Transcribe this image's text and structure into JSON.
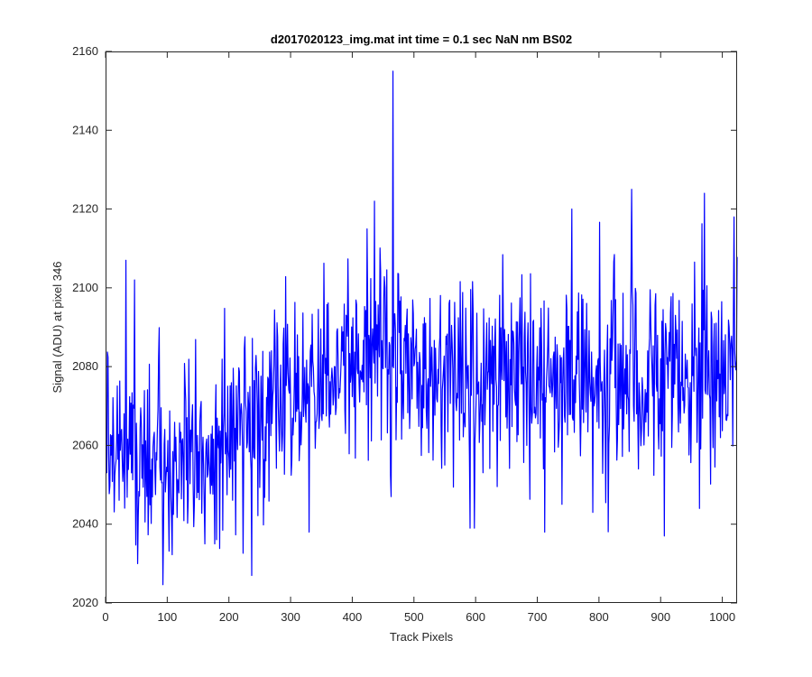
{
  "chart_data": {
    "type": "line",
    "title": "d2017020123_img.mat int time = 0.1 sec  NaN nm BS02",
    "xlabel": "Track Pixels",
    "ylabel": "Signal (ADU) at pixel 346",
    "xlim": [
      0,
      1024
    ],
    "ylim": [
      2020,
      2160
    ],
    "xticks": [
      0,
      100,
      200,
      300,
      400,
      500,
      600,
      700,
      800,
      900,
      1000
    ],
    "yticks": [
      2020,
      2040,
      2060,
      2080,
      2100,
      2120,
      2140,
      2160
    ],
    "grid": false,
    "legend": "none",
    "line_color": "#0000ff",
    "series": [
      {
        "x": [
          1,
          25,
          50,
          75,
          100,
          125,
          150,
          175,
          200,
          225,
          250,
          275,
          300,
          325,
          350,
          375,
          400,
          425,
          450,
          475,
          500,
          525,
          550,
          575,
          600,
          625,
          650,
          675,
          700,
          725,
          750,
          775,
          800,
          825,
          850,
          875,
          900,
          925,
          950,
          975,
          1000,
          1024
        ],
        "y": [
          2062,
          2060,
          2058,
          2055,
          2056,
          2058,
          2057,
          2058,
          2063,
          2066,
          2068,
          2070,
          2072,
          2074,
          2077,
          2080,
          2082,
          2085,
          2088,
          2086,
          2080,
          2078,
          2075,
          2076,
          2074,
          2075,
          2076,
          2077,
          2076,
          2078,
          2079,
          2078,
          2076,
          2078,
          2080,
          2079,
          2078,
          2079,
          2080,
          2080,
          2081,
          2082
        ],
        "band_sigma": 12
      }
    ],
    "annotations": {
      "notable_points": [
        {
          "x": 33,
          "y": 2107
        },
        {
          "x": 47,
          "y": 2102
        },
        {
          "x": 52,
          "y": 2030
        },
        {
          "x": 161,
          "y": 2035
        },
        {
          "x": 177,
          "y": 2035
        },
        {
          "x": 330,
          "y": 2038
        },
        {
          "x": 436,
          "y": 2122
        },
        {
          "x": 466,
          "y": 2155
        },
        {
          "x": 463,
          "y": 2047
        },
        {
          "x": 591,
          "y": 2039
        },
        {
          "x": 598,
          "y": 2039
        },
        {
          "x": 712,
          "y": 2038
        },
        {
          "x": 756,
          "y": 2120
        },
        {
          "x": 790,
          "y": 2043
        },
        {
          "x": 853,
          "y": 2125
        },
        {
          "x": 906,
          "y": 2037
        },
        {
          "x": 963,
          "y": 2044
        },
        {
          "x": 971,
          "y": 2124
        },
        {
          "x": 1019,
          "y": 2118
        }
      ]
    }
  }
}
